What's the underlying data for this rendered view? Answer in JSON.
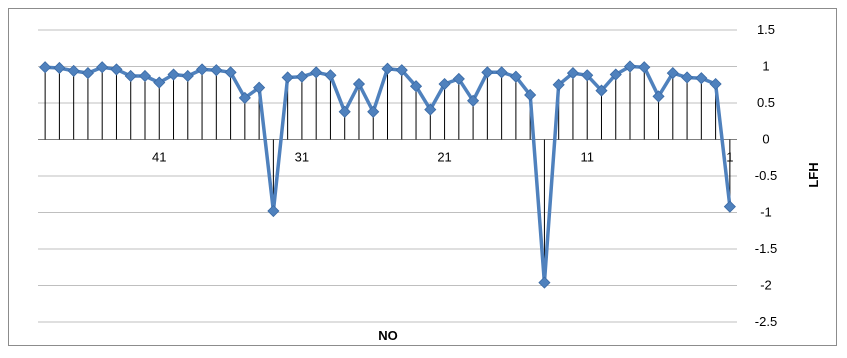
{
  "chart_data": {
    "type": "line",
    "xlabel": "NO",
    "ylabel": "LFH",
    "ylim": [
      -2.5,
      1.5
    ],
    "yticks": [
      "1.5",
      "1",
      "0.5",
      "0",
      "-0.5",
      "-1",
      "-1.5",
      "-2",
      "-2.5"
    ],
    "x_axis": "reversed",
    "x_tick_labels": [
      "41",
      "31",
      "21",
      "11",
      "1"
    ],
    "x_tick_values": [
      41,
      31,
      21,
      11,
      1
    ],
    "y_axis_position": "right",
    "grid": "horizontal",
    "drop_lines": true,
    "marker": "diamond",
    "line_color": "#4F81BD",
    "series": [
      {
        "x": [
          49,
          48,
          47,
          46,
          45,
          44,
          43,
          42,
          41,
          40,
          39,
          38,
          37,
          36,
          35,
          34,
          33,
          32,
          31,
          30,
          29,
          28,
          27,
          26,
          25,
          24,
          23,
          22,
          21,
          20,
          19,
          18,
          17,
          16,
          15,
          14,
          13,
          12,
          11,
          10,
          9,
          8,
          7,
          6,
          5,
          4,
          3,
          2,
          1
        ],
        "values": [
          0.99,
          0.98,
          0.94,
          0.91,
          0.99,
          0.96,
          0.87,
          0.87,
          0.78,
          0.89,
          0.87,
          0.96,
          0.95,
          0.92,
          0.57,
          0.71,
          -0.98,
          0.85,
          0.86,
          0.92,
          0.88,
          0.38,
          0.76,
          0.38,
          0.97,
          0.95,
          0.73,
          0.41,
          0.76,
          0.83,
          0.53,
          0.92,
          0.92,
          0.86,
          0.61,
          -1.96,
          0.75,
          0.91,
          0.88,
          0.67,
          0.89,
          1.0,
          0.99,
          0.59,
          0.91,
          0.85,
          0.84,
          0.76,
          -0.92
        ]
      }
    ]
  }
}
